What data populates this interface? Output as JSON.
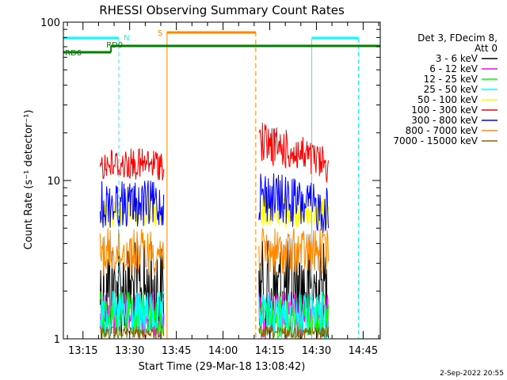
{
  "chart_data": {
    "type": "line",
    "title": "RHESSI Observing Summary Count Rates",
    "xlabel": "Start Time (29-Mar-18 13:08:42)",
    "ylabel": "Count Rate (s⁻¹ detector⁻¹)",
    "yscale": "log",
    "ylim": [
      1,
      100
    ],
    "xlim": [
      "13:08:42",
      "14:50:30"
    ],
    "y_ticks": [
      "1",
      "10",
      "100"
    ],
    "x_ticks": [
      "13:15",
      "13:30",
      "13:45",
      "14:00",
      "14:15",
      "14:30",
      "14:45"
    ],
    "legend_header": [
      "Det 3, FDecim 8,",
      "Att 0"
    ],
    "legend_position": "right",
    "series": [
      {
        "name": "3 - 6 keV",
        "color": "#000000",
        "band": [
          1.0,
          4.2
        ]
      },
      {
        "name": "6 - 12 keV",
        "color": "#ff00ff",
        "band": [
          1.0,
          2.0
        ]
      },
      {
        "name": "12 - 25 keV",
        "color": "#00ff00",
        "band": [
          1.0,
          2.0
        ]
      },
      {
        "name": "25 - 50 keV",
        "color": "#00ffff",
        "band": [
          1.0,
          2.0
        ]
      },
      {
        "name": "50 - 100 keV",
        "color": "#ffff00",
        "band": [
          5.0,
          8.0
        ]
      },
      {
        "name": "100 - 300 keV",
        "color": "#ff0000",
        "band": [
          10.0,
          16.0
        ]
      },
      {
        "name": "300 - 800 keV",
        "color": "#0000ff",
        "band": [
          5.0,
          10.0
        ]
      },
      {
        "name": "800 - 7000 keV",
        "color": "#ff8800",
        "band": [
          2.5,
          5.0
        ]
      },
      {
        "name": "7000 - 15000 keV",
        "color": "#8b6400",
        "band": [
          1.0,
          1.2
        ]
      }
    ],
    "observing_intervals": [
      [
        "13:20:30",
        "13:41:00"
      ],
      [
        "14:11:30",
        "14:34:00"
      ]
    ],
    "annotations": {
      "night_label": "N",
      "saa_label": "S",
      "rd0_label": "RD0",
      "rd6_label": "RD6",
      "night_bars": [
        [
          "13:08:42",
          "13:26:30"
        ],
        [
          "14:28:30",
          "14:43:30"
        ]
      ],
      "saa_bar": [
        "13:42:00",
        "14:10:30"
      ],
      "night_dashed_lines": [
        "13:26:30",
        "14:43:30"
      ],
      "night_solid_lines": [
        "13:08:42",
        "14:28:30"
      ],
      "saa_solid_lines": [
        "13:42:00"
      ],
      "saa_dashed_lines": [
        "14:10:30"
      ],
      "rd0_bar": [
        "13:24:00",
        "14:50:30"
      ],
      "rd6_bar": [
        "13:08:42",
        "13:24:00"
      ],
      "colors": {
        "night": "#00ffff",
        "saa": "#ff8800",
        "rd": "#008000"
      }
    }
  },
  "footer": {
    "timestamp": "2-Sep-2022 20:55"
  }
}
